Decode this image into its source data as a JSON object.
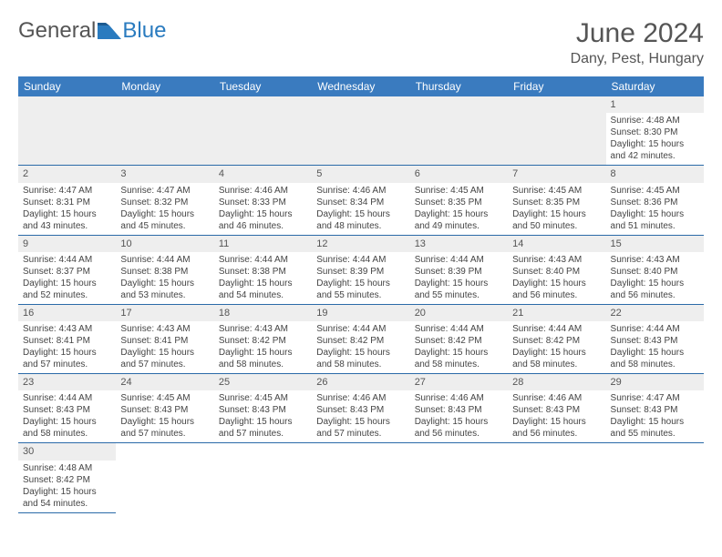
{
  "brand": {
    "name_a": "General",
    "name_b": "Blue"
  },
  "header": {
    "month_title": "June 2024",
    "location": "Dany, Pest, Hungary"
  },
  "weekdays": [
    "Sunday",
    "Monday",
    "Tuesday",
    "Wednesday",
    "Thursday",
    "Friday",
    "Saturday"
  ],
  "colors": {
    "header_bg": "#3a7bbf",
    "header_fg": "#ffffff",
    "daynum_bg": "#eeeeee",
    "grid_line": "#2a6aa8"
  },
  "weeks": [
    [
      null,
      null,
      null,
      null,
      null,
      null,
      {
        "n": "1",
        "sunrise": "Sunrise: 4:48 AM",
        "sunset": "Sunset: 8:30 PM",
        "day1": "Daylight: 15 hours",
        "day2": "and 42 minutes."
      }
    ],
    [
      {
        "n": "2",
        "sunrise": "Sunrise: 4:47 AM",
        "sunset": "Sunset: 8:31 PM",
        "day1": "Daylight: 15 hours",
        "day2": "and 43 minutes."
      },
      {
        "n": "3",
        "sunrise": "Sunrise: 4:47 AM",
        "sunset": "Sunset: 8:32 PM",
        "day1": "Daylight: 15 hours",
        "day2": "and 45 minutes."
      },
      {
        "n": "4",
        "sunrise": "Sunrise: 4:46 AM",
        "sunset": "Sunset: 8:33 PM",
        "day1": "Daylight: 15 hours",
        "day2": "and 46 minutes."
      },
      {
        "n": "5",
        "sunrise": "Sunrise: 4:46 AM",
        "sunset": "Sunset: 8:34 PM",
        "day1": "Daylight: 15 hours",
        "day2": "and 48 minutes."
      },
      {
        "n": "6",
        "sunrise": "Sunrise: 4:45 AM",
        "sunset": "Sunset: 8:35 PM",
        "day1": "Daylight: 15 hours",
        "day2": "and 49 minutes."
      },
      {
        "n": "7",
        "sunrise": "Sunrise: 4:45 AM",
        "sunset": "Sunset: 8:35 PM",
        "day1": "Daylight: 15 hours",
        "day2": "and 50 minutes."
      },
      {
        "n": "8",
        "sunrise": "Sunrise: 4:45 AM",
        "sunset": "Sunset: 8:36 PM",
        "day1": "Daylight: 15 hours",
        "day2": "and 51 minutes."
      }
    ],
    [
      {
        "n": "9",
        "sunrise": "Sunrise: 4:44 AM",
        "sunset": "Sunset: 8:37 PM",
        "day1": "Daylight: 15 hours",
        "day2": "and 52 minutes."
      },
      {
        "n": "10",
        "sunrise": "Sunrise: 4:44 AM",
        "sunset": "Sunset: 8:38 PM",
        "day1": "Daylight: 15 hours",
        "day2": "and 53 minutes."
      },
      {
        "n": "11",
        "sunrise": "Sunrise: 4:44 AM",
        "sunset": "Sunset: 8:38 PM",
        "day1": "Daylight: 15 hours",
        "day2": "and 54 minutes."
      },
      {
        "n": "12",
        "sunrise": "Sunrise: 4:44 AM",
        "sunset": "Sunset: 8:39 PM",
        "day1": "Daylight: 15 hours",
        "day2": "and 55 minutes."
      },
      {
        "n": "13",
        "sunrise": "Sunrise: 4:44 AM",
        "sunset": "Sunset: 8:39 PM",
        "day1": "Daylight: 15 hours",
        "day2": "and 55 minutes."
      },
      {
        "n": "14",
        "sunrise": "Sunrise: 4:43 AM",
        "sunset": "Sunset: 8:40 PM",
        "day1": "Daylight: 15 hours",
        "day2": "and 56 minutes."
      },
      {
        "n": "15",
        "sunrise": "Sunrise: 4:43 AM",
        "sunset": "Sunset: 8:40 PM",
        "day1": "Daylight: 15 hours",
        "day2": "and 56 minutes."
      }
    ],
    [
      {
        "n": "16",
        "sunrise": "Sunrise: 4:43 AM",
        "sunset": "Sunset: 8:41 PM",
        "day1": "Daylight: 15 hours",
        "day2": "and 57 minutes."
      },
      {
        "n": "17",
        "sunrise": "Sunrise: 4:43 AM",
        "sunset": "Sunset: 8:41 PM",
        "day1": "Daylight: 15 hours",
        "day2": "and 57 minutes."
      },
      {
        "n": "18",
        "sunrise": "Sunrise: 4:43 AM",
        "sunset": "Sunset: 8:42 PM",
        "day1": "Daylight: 15 hours",
        "day2": "and 58 minutes."
      },
      {
        "n": "19",
        "sunrise": "Sunrise: 4:44 AM",
        "sunset": "Sunset: 8:42 PM",
        "day1": "Daylight: 15 hours",
        "day2": "and 58 minutes."
      },
      {
        "n": "20",
        "sunrise": "Sunrise: 4:44 AM",
        "sunset": "Sunset: 8:42 PM",
        "day1": "Daylight: 15 hours",
        "day2": "and 58 minutes."
      },
      {
        "n": "21",
        "sunrise": "Sunrise: 4:44 AM",
        "sunset": "Sunset: 8:42 PM",
        "day1": "Daylight: 15 hours",
        "day2": "and 58 minutes."
      },
      {
        "n": "22",
        "sunrise": "Sunrise: 4:44 AM",
        "sunset": "Sunset: 8:43 PM",
        "day1": "Daylight: 15 hours",
        "day2": "and 58 minutes."
      }
    ],
    [
      {
        "n": "23",
        "sunrise": "Sunrise: 4:44 AM",
        "sunset": "Sunset: 8:43 PM",
        "day1": "Daylight: 15 hours",
        "day2": "and 58 minutes."
      },
      {
        "n": "24",
        "sunrise": "Sunrise: 4:45 AM",
        "sunset": "Sunset: 8:43 PM",
        "day1": "Daylight: 15 hours",
        "day2": "and 57 minutes."
      },
      {
        "n": "25",
        "sunrise": "Sunrise: 4:45 AM",
        "sunset": "Sunset: 8:43 PM",
        "day1": "Daylight: 15 hours",
        "day2": "and 57 minutes."
      },
      {
        "n": "26",
        "sunrise": "Sunrise: 4:46 AM",
        "sunset": "Sunset: 8:43 PM",
        "day1": "Daylight: 15 hours",
        "day2": "and 57 minutes."
      },
      {
        "n": "27",
        "sunrise": "Sunrise: 4:46 AM",
        "sunset": "Sunset: 8:43 PM",
        "day1": "Daylight: 15 hours",
        "day2": "and 56 minutes."
      },
      {
        "n": "28",
        "sunrise": "Sunrise: 4:46 AM",
        "sunset": "Sunset: 8:43 PM",
        "day1": "Daylight: 15 hours",
        "day2": "and 56 minutes."
      },
      {
        "n": "29",
        "sunrise": "Sunrise: 4:47 AM",
        "sunset": "Sunset: 8:43 PM",
        "day1": "Daylight: 15 hours",
        "day2": "and 55 minutes."
      }
    ],
    [
      {
        "n": "30",
        "sunrise": "Sunrise: 4:48 AM",
        "sunset": "Sunset: 8:42 PM",
        "day1": "Daylight: 15 hours",
        "day2": "and 54 minutes."
      },
      null,
      null,
      null,
      null,
      null,
      null
    ]
  ]
}
